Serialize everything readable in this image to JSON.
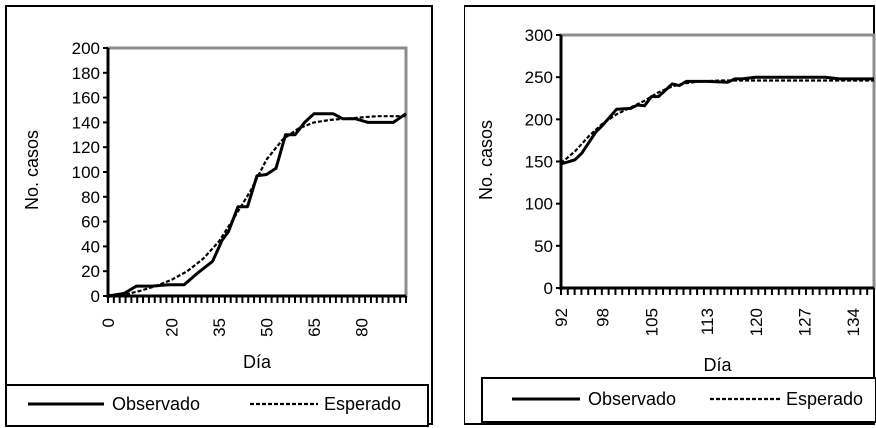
{
  "chart_data": [
    {
      "type": "line",
      "xlabel": "Día",
      "ylabel": "No. casos",
      "xlim": [
        0,
        94
      ],
      "ylim": [
        0,
        200
      ],
      "yticks": [
        0,
        20,
        40,
        60,
        80,
        100,
        120,
        140,
        160,
        180,
        200
      ],
      "xtick_labels": [
        "0",
        "20",
        "35",
        "50",
        "65",
        "80"
      ],
      "xtick_values": [
        0,
        20,
        35,
        50,
        65,
        80
      ],
      "legend_position": "bottom",
      "series": [
        {
          "name": "Observado",
          "style": "solid",
          "x": [
            0,
            5,
            9,
            14,
            19,
            24,
            28,
            33,
            36,
            38,
            41,
            44,
            47,
            50,
            53,
            56,
            59,
            62,
            65,
            68,
            71,
            74,
            78,
            82,
            86,
            90,
            94
          ],
          "y": [
            0,
            2,
            8,
            8,
            9,
            9,
            18,
            28,
            45,
            52,
            72,
            72,
            97,
            98,
            103,
            130,
            130,
            140,
            147,
            147,
            147,
            143,
            143,
            140,
            140,
            140,
            147
          ]
        },
        {
          "name": "Esperado",
          "style": "dashed",
          "x": [
            0,
            5,
            10,
            15,
            20,
            25,
            30,
            35,
            40,
            45,
            50,
            55,
            60,
            65,
            70,
            75,
            80,
            85,
            90,
            94
          ],
          "y": [
            0,
            1,
            4,
            8,
            13,
            20,
            30,
            44,
            64,
            85,
            110,
            126,
            135,
            140,
            142,
            143,
            144,
            145,
            145,
            145
          ]
        }
      ]
    },
    {
      "type": "line",
      "xlabel": "Día",
      "ylabel": "No. casos",
      "xlim": [
        92,
        137
      ],
      "ylim": [
        0,
        300
      ],
      "yticks": [
        0,
        50,
        100,
        150,
        200,
        250,
        300
      ],
      "xtick_labels": [
        "92",
        "98",
        "105",
        "113",
        "120",
        "127",
        "134"
      ],
      "xtick_values": [
        92,
        98,
        105,
        113,
        120,
        127,
        134
      ],
      "legend_position": "bottom",
      "series": [
        {
          "name": "Observado",
          "style": "solid",
          "x": [
            92,
            94,
            95,
            97,
            98,
            100,
            102,
            103,
            104,
            105,
            106,
            108,
            109,
            110,
            111,
            113,
            116,
            117,
            118,
            120,
            122,
            127,
            130,
            132,
            134,
            137
          ],
          "y": [
            147,
            152,
            160,
            185,
            193,
            212,
            213,
            217,
            216,
            227,
            227,
            242,
            240,
            245,
            245,
            245,
            244,
            248,
            248,
            250,
            250,
            250,
            250,
            248,
            248,
            248
          ],
          "series_label": "Observado"
        },
        {
          "name": "Esperado",
          "style": "dashed",
          "x": [
            92,
            94,
            96,
            98,
            100,
            102,
            104,
            106,
            108,
            110,
            112,
            115,
            120,
            125,
            130,
            137
          ],
          "y": [
            148,
            162,
            180,
            195,
            206,
            214,
            222,
            232,
            239,
            243,
            245,
            246,
            246,
            246,
            246,
            246
          ]
        }
      ]
    }
  ]
}
